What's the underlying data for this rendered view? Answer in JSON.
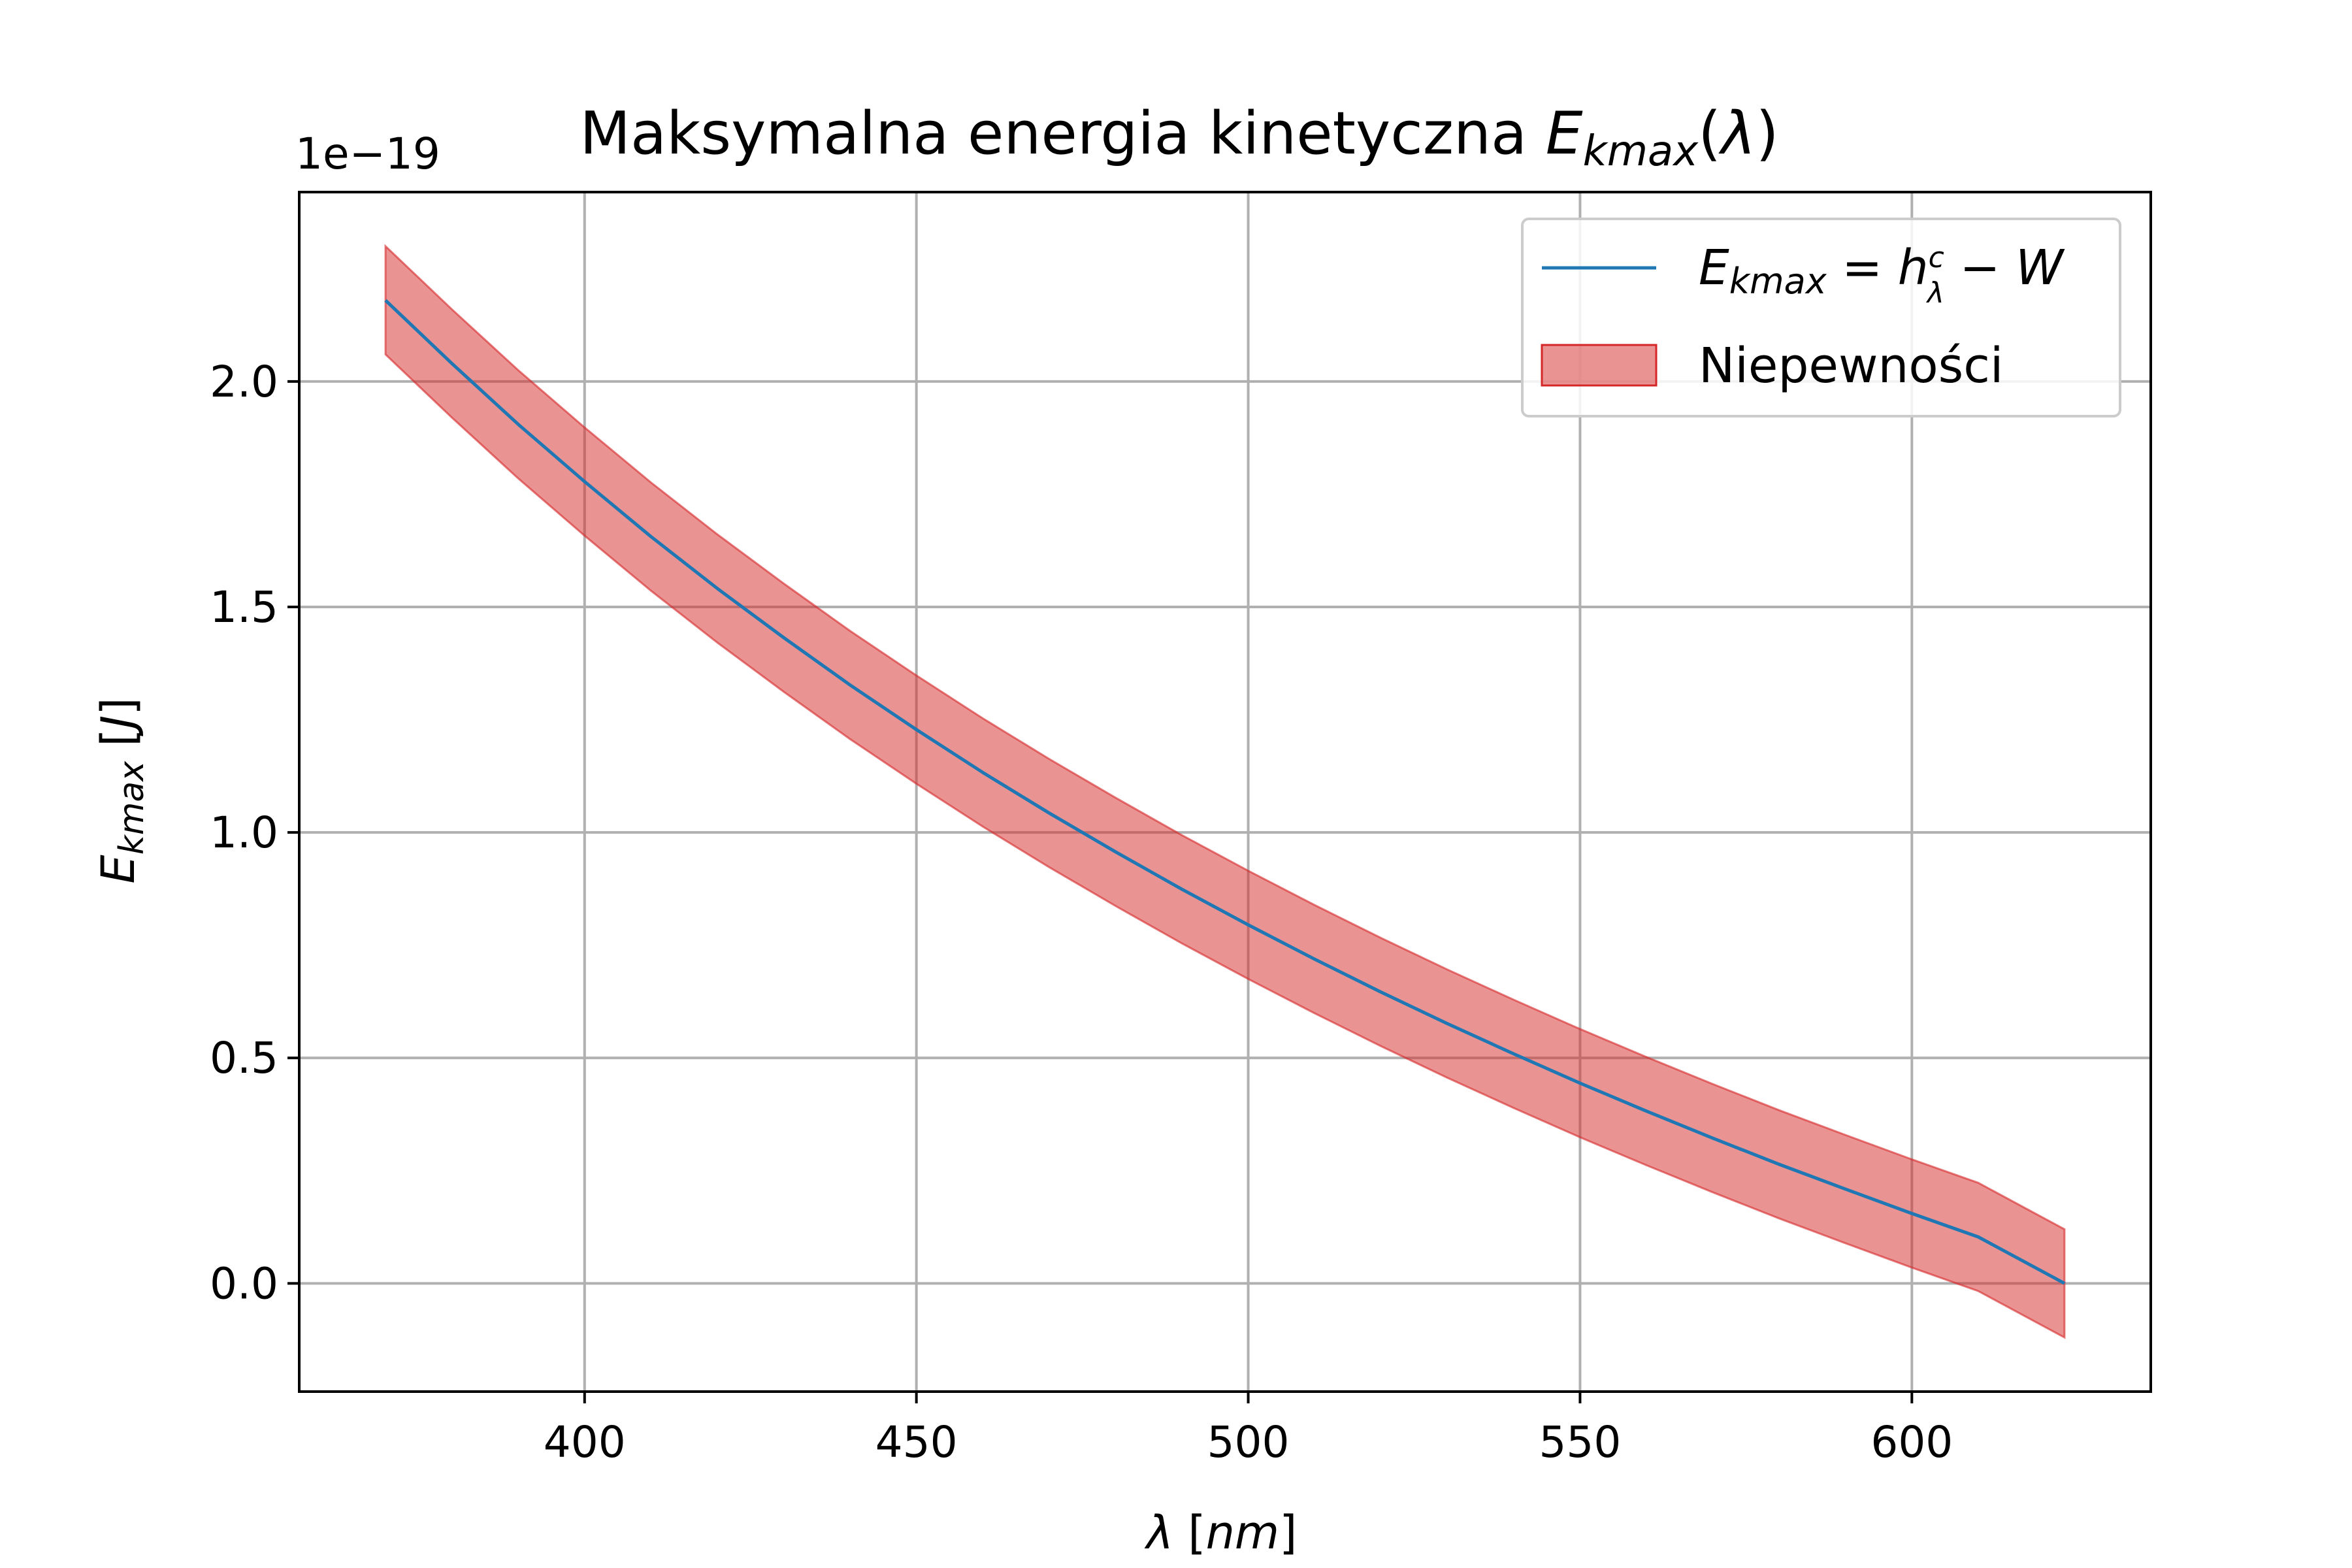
{
  "chart_data": {
    "type": "line",
    "title": {
      "prefix": "Maksymalna energia kinetyczna ",
      "symbol": "E",
      "subscript": "kmax",
      "suffix_var": "λ"
    },
    "xlabel": {
      "symbol": "λ",
      "unit": "nm"
    },
    "ylabel": {
      "symbol": "E",
      "subscript": "kmax",
      "unit": "J"
    },
    "y_offset_text": "1e−19",
    "xlim": [
      357,
      636
    ],
    "ylim": [
      -0.24,
      2.42
    ],
    "xticks": [
      400,
      450,
      500,
      550,
      600
    ],
    "xtick_labels": [
      "400",
      "450",
      "500",
      "550",
      "600"
    ],
    "yticks": [
      0.0,
      0.5,
      1.0,
      1.5,
      2.0
    ],
    "ytick_labels": [
      "0.0",
      "0.5",
      "1.0",
      "1.5",
      "2.0"
    ],
    "grid": true,
    "legend_position": "top-right",
    "x": [
      370,
      380,
      390,
      400,
      410,
      420,
      430,
      440,
      450,
      460,
      470,
      480,
      490,
      500,
      510,
      520,
      530,
      540,
      550,
      560,
      570,
      580,
      590,
      600,
      610,
      623
    ],
    "series": [
      {
        "name": "Ekmax = h c/λ − W",
        "kind": "line",
        "color": "#1f77b4",
        "values": [
          2.18,
          2.04,
          1.905,
          1.778,
          1.656,
          1.541,
          1.432,
          1.327,
          1.228,
          1.133,
          1.043,
          0.957,
          0.874,
          0.795,
          0.719,
          0.646,
          0.576,
          0.509,
          0.444,
          0.382,
          0.322,
          0.264,
          0.209,
          0.155,
          0.103,
          0.0
        ]
      },
      {
        "name": "Niepewności",
        "kind": "band",
        "color": "#d62728",
        "upper": [
          2.3,
          2.16,
          2.025,
          1.898,
          1.776,
          1.661,
          1.552,
          1.447,
          1.348,
          1.253,
          1.163,
          1.077,
          0.994,
          0.915,
          0.839,
          0.766,
          0.696,
          0.629,
          0.564,
          0.502,
          0.442,
          0.384,
          0.329,
          0.275,
          0.223,
          0.12
        ],
        "lower": [
          2.06,
          1.92,
          1.785,
          1.658,
          1.536,
          1.421,
          1.312,
          1.207,
          1.108,
          1.013,
          0.923,
          0.837,
          0.754,
          0.675,
          0.599,
          0.526,
          0.456,
          0.389,
          0.324,
          0.262,
          0.202,
          0.144,
          0.089,
          0.035,
          -0.017,
          -0.12
        ]
      }
    ],
    "legend": {
      "line_label": {
        "symbol": "E",
        "subscript": "kmax",
        "eq": " = ",
        "h": "h",
        "num": "c",
        "den": "λ",
        "minus": " − ",
        "w": "W"
      },
      "band_label": "Niepewności"
    }
  }
}
